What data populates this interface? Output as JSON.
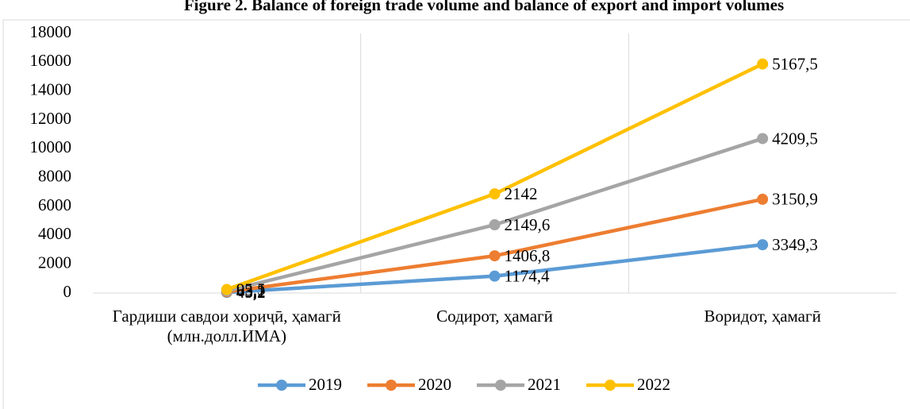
{
  "chart_data": {
    "type": "line",
    "stacked": true,
    "title": "Figure 2. Balance of foreign trade volume and balance of export and import volumes",
    "categories": [
      "Гардиши савдои хориҷӣ, ҳамагӣ (млн.долл.ИМА)",
      "Содирот, ҳамагӣ",
      "Воридот, ҳамагӣ"
    ],
    "series": [
      {
        "name": "2019",
        "color": "#5b9bd5",
        "values": [
          45.2,
          1174.4,
          3349.3
        ],
        "value_labels": [
          "45,2",
          "1174,4",
          "3349,3"
        ]
      },
      {
        "name": "2020",
        "color": "#ed7d31",
        "values": [
          43.2,
          1406.8,
          3150.9
        ],
        "value_labels": [
          "43,2",
          "1406,8",
          "3150,9"
        ]
      },
      {
        "name": "2021",
        "color": "#a5a5a5",
        "values": [
          63.1,
          2149.6,
          4209.5
        ],
        "value_labels": [
          "63,1",
          "2149,6",
          "4209,5"
        ]
      },
      {
        "name": "2022",
        "color": "#ffc000",
        "values": [
          95.5,
          2142,
          5167.5
        ],
        "value_labels": [
          "95,5",
          "2142",
          "5167,5"
        ]
      }
    ],
    "ylim": [
      0,
      18000
    ],
    "yticks": [
      0,
      2000,
      4000,
      6000,
      8000,
      10000,
      12000,
      14000,
      16000,
      18000
    ],
    "grid": "x",
    "legend": "bottom"
  }
}
